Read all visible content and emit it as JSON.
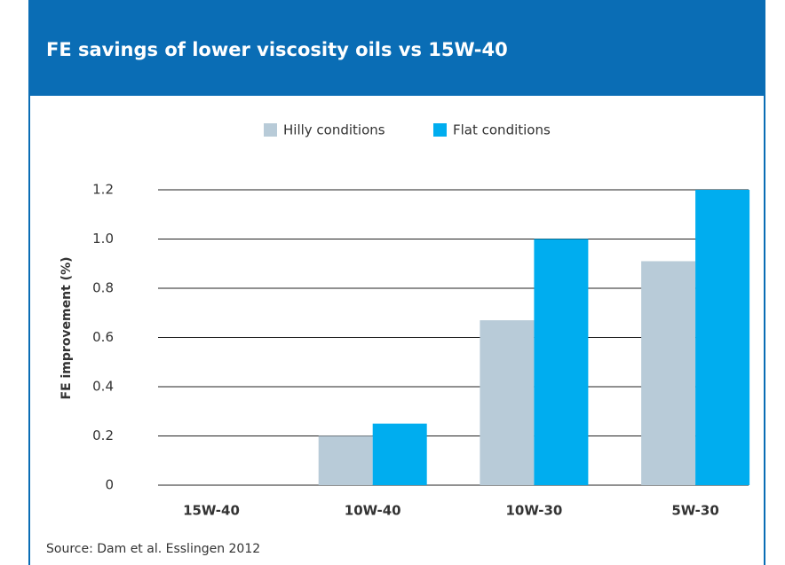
{
  "chart_data": {
    "type": "bar",
    "title": "FE savings of lower viscosity oils vs 15W-40",
    "y_label": "FE improvement (%)",
    "source": "Source: Dam et al. Esslingen 2012",
    "categories": [
      "15W-40",
      "10W-40",
      "10W-30",
      "5W-30"
    ],
    "series": [
      {
        "name": "Hilly conditions",
        "color": "#b8cbd8",
        "values": [
          0,
          0.2,
          0.67,
          0.91
        ]
      },
      {
        "name": "Flat conditions",
        "color": "#00adef",
        "values": [
          0,
          0.25,
          1.0,
          1.2
        ]
      }
    ],
    "ylim": [
      0,
      1.2
    ],
    "yticks": [
      0,
      0.2,
      0.4,
      0.6,
      0.8,
      {
        "value": 1,
        "label": "1.0"
      },
      1.2
    ],
    "grid": true,
    "legend": "top"
  }
}
